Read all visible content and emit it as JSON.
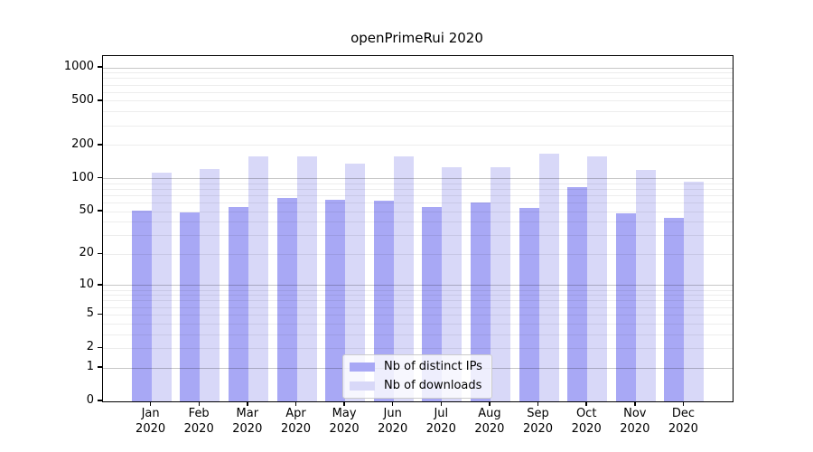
{
  "window": {
    "background": "#ffffff"
  },
  "chart_data": {
    "type": "bar",
    "title": "openPrimeRui 2020",
    "months": [
      "Jan",
      "Feb",
      "Mar",
      "Apr",
      "May",
      "Jun",
      "Jul",
      "Aug",
      "Sep",
      "Oct",
      "Nov",
      "Dec"
    ],
    "year": "2020",
    "categories": [
      "Jan 2020",
      "Feb 2020",
      "Mar 2020",
      "Apr 2020",
      "May 2020",
      "Jun 2020",
      "Jul 2020",
      "Aug 2020",
      "Sep 2020",
      "Oct 2020",
      "Nov 2020",
      "Dec 2020"
    ],
    "series": [
      {
        "name": "Nb of distinct IPs",
        "color": "#a8a8f5",
        "values": [
          51,
          49,
          55,
          67,
          64,
          63,
          55,
          60,
          54,
          84,
          48,
          44
        ]
      },
      {
        "name": "Nb of downloads",
        "color": "#d8d8f8",
        "values": [
          113,
          122,
          158,
          158,
          136,
          160,
          127,
          127,
          168,
          160,
          119,
          94
        ]
      }
    ],
    "yscale": "log1p",
    "yticks": [
      1000,
      500,
      200,
      100,
      50,
      20,
      10,
      5,
      2,
      1,
      0
    ],
    "ylim": [
      0,
      1275
    ],
    "xlabel": "",
    "ylabel": "",
    "grid": {
      "on": true,
      "major_color": "#c6c6c6",
      "minor_color": "#ececec"
    },
    "legend": {
      "position": "lower center"
    }
  }
}
